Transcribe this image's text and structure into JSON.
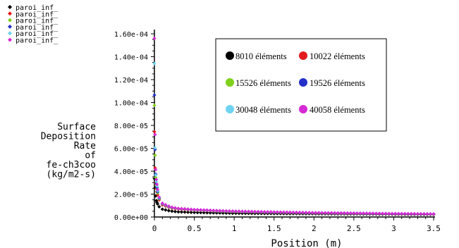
{
  "chart_data": {
    "type": "scatter",
    "title": "",
    "xlabel": "Position (m)",
    "ylabel_lines": [
      "Surface",
      "Deposition",
      "Rate",
      "of",
      "fe-ch3coo",
      "(kg/m2-s)"
    ],
    "xlim": [
      0,
      3.5
    ],
    "ylim": [
      0,
      0.00016
    ],
    "x_ticks": [
      0,
      0.5,
      1,
      1.5,
      2,
      2.5,
      3,
      3.5
    ],
    "x_tick_labels": [
      "0",
      "0.5",
      "1",
      "1.5",
      "2",
      "2.5",
      "3",
      "3.5"
    ],
    "y_ticks": [
      0,
      2e-05,
      4e-05,
      6e-05,
      8e-05,
      0.0001,
      0.00012,
      0.00014,
      0.00016
    ],
    "y_tick_labels": [
      "0.00e+00",
      "2.00e-05",
      "4.00e-05",
      "6.00e-05",
      "8.00e-05",
      "1.00e-04",
      "1.20e-04",
      "1.40e-04",
      "1.60e-04"
    ],
    "grid": false,
    "legend_position": "top-left",
    "legend_labels": [
      "paroi_inf_",
      "paroi_inf_",
      "paroi_inf_",
      "paroi_inf_",
      "paroi_inf_",
      "paroi_inf_"
    ],
    "inset_legend_position": "top-right",
    "series": [
      {
        "name": "8010 éléments",
        "color": "#000000",
        "x": [
          0,
          0.01,
          0.02,
          0.05,
          0.1,
          0.2,
          0.3,
          0.5,
          0.75,
          1,
          1.5,
          2,
          2.5,
          3,
          3.5
        ],
        "y": [
          3.35e-05,
          2.35e-05,
          1.5e-05,
          9.5e-06,
          6.8e-06,
          5.2e-06,
          4.5e-06,
          4e-06,
          3.6e-06,
          3.3e-06,
          3e-06,
          2.8e-06,
          2.6e-06,
          2.4e-06,
          2.2e-06
        ]
      },
      {
        "name": "10022 éléments",
        "color": "#e31a1c",
        "x": [
          0,
          0.01,
          0.02,
          0.05,
          0.1,
          0.2,
          0.3,
          0.5,
          0.75,
          1,
          1.5,
          2,
          2.5,
          3,
          3.5
        ],
        "y": [
          7.45e-05,
          3.5e-05,
          2.6e-05,
          1.6e-05,
          1.05e-05,
          7.8e-06,
          6.8e-06,
          6e-06,
          5.2e-06,
          4.7e-06,
          4e-06,
          3.5e-06,
          3.1e-06,
          2.8e-06,
          2.5e-06
        ]
      },
      {
        "name": "15526 éléments",
        "color": "#7fd11b",
        "x": [
          0,
          0.01,
          0.02,
          0.05,
          0.1,
          0.2,
          0.3,
          0.5,
          0.75,
          1,
          1.5,
          2,
          2.5,
          3,
          3.5
        ],
        "y": [
          9.75e-05,
          4.3e-05,
          2.9e-05,
          1.7e-05,
          1.12e-05,
          8.2e-06,
          7.2e-06,
          6.2e-06,
          5.4e-06,
          4.8e-06,
          4.1e-06,
          3.6e-06,
          3.2e-06,
          2.9e-06,
          2.6e-06
        ]
      },
      {
        "name": "19526 éléments",
        "color": "#2430c8",
        "x": [
          0,
          0.01,
          0.02,
          0.05,
          0.1,
          0.2,
          0.3,
          0.5,
          0.75,
          1,
          1.5,
          2,
          2.5,
          3,
          3.5
        ],
        "y": [
          0.0001065,
          4.7e-05,
          3.1e-05,
          1.75e-05,
          1.15e-05,
          8.4e-06,
          7.3e-06,
          6.3e-06,
          5.5e-06,
          4.9e-06,
          4.2e-06,
          3.7e-06,
          3.3e-06,
          2.9e-06,
          2.6e-06
        ]
      },
      {
        "name": "30048 éléments",
        "color": "#6fd3f0",
        "x": [
          0,
          0.01,
          0.02,
          0.05,
          0.1,
          0.2,
          0.3,
          0.5,
          0.75,
          1,
          1.5,
          2,
          2.5,
          3,
          3.5
        ],
        "y": [
          0.000134,
          4.2e-05,
          3.3e-05,
          1.8e-05,
          1.18e-05,
          8.6e-06,
          7.4e-06,
          6.4e-06,
          5.6e-06,
          5e-06,
          4.3e-06,
          3.7e-06,
          3.3e-06,
          3e-06,
          2.7e-06
        ]
      },
      {
        "name": "40058 éléments",
        "color": "#d62ad6",
        "x": [
          0,
          0.01,
          0.02,
          0.05,
          0.1,
          0.2,
          0.3,
          0.5,
          0.75,
          1,
          1.5,
          2,
          2.5,
          3,
          3.5
        ],
        "y": [
          0.000156,
          5.1e-05,
          3.5e-05,
          1.85e-05,
          1.2e-05,
          8.8e-06,
          7.5e-06,
          6.5e-06,
          5.7e-06,
          5.1e-06,
          4.4e-06,
          3.8e-06,
          3.4e-06,
          3e-06,
          2.7e-06
        ]
      }
    ]
  }
}
